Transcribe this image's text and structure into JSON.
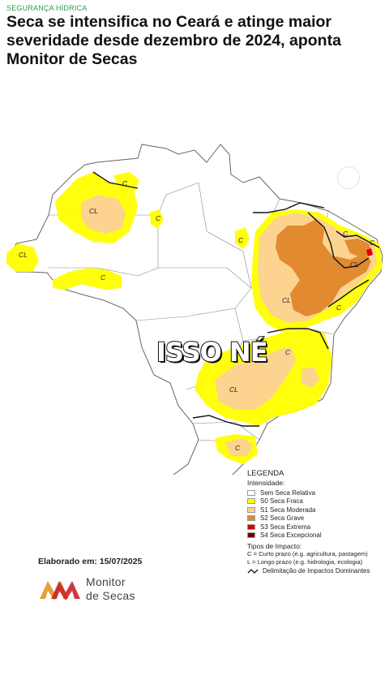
{
  "header": {
    "kicker": "SEGURANÇA HÍDRICA",
    "headline": "Seca se intensifica no Ceará e atinge maior severidade desde dezembro de 2024, aponta Monitor de Secas"
  },
  "overlay_caption": "ISSO NÉ",
  "map": {
    "region_labels": [
      "CL",
      "C",
      "C",
      "CL",
      "C",
      "C",
      "C",
      "CL",
      "C",
      "C",
      "CL",
      "C",
      "CL",
      "C"
    ],
    "colors": {
      "s0": "#ffff00",
      "s1": "#fcd38f",
      "s2": "#e18a2f",
      "s3": "#e00000",
      "s4": "#730000",
      "none": "#ffffff"
    }
  },
  "legend": {
    "title": "LEGENDA",
    "subtitle": "Intensidade:",
    "items": [
      {
        "label": "Sem Seca Relativa",
        "color": "#ffffff"
      },
      {
        "label": "S0 Seca Fraca",
        "color": "#ffff00"
      },
      {
        "label": "S1 Seca Moderada",
        "color": "#fcd38f"
      },
      {
        "label": "S2 Seca Grave",
        "color": "#e18a2f"
      },
      {
        "label": "S3 Seca Extrema",
        "color": "#e00000"
      },
      {
        "label": "S4 Seca Excepcional",
        "color": "#730000"
      }
    ],
    "impact_title": "Tipos de Impacto:",
    "impact_c": "C = Curto prazo (e.g. agricultura, pastagem)",
    "impact_l": "L = Longo prazo (e.g. hidrologia, ecologia)",
    "delimitation": "Delimitação de Impactos Dominantes"
  },
  "footer": {
    "elaborated": "Elaborado em: 15/07/2025",
    "brand_line1": "Monitor",
    "brand_line2": "de Secas"
  }
}
